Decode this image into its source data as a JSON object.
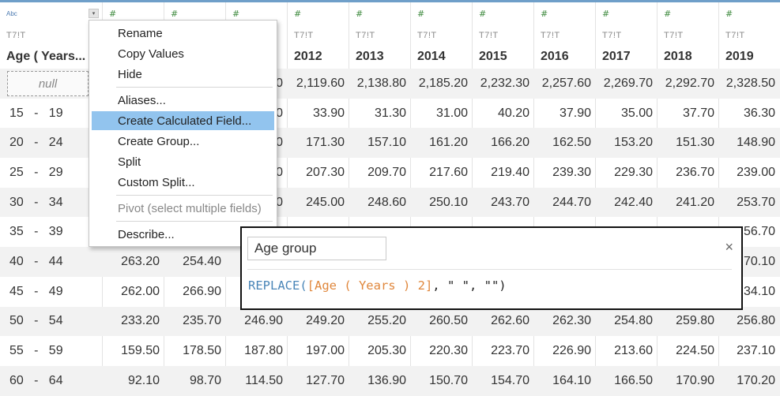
{
  "columns": [
    {
      "type_icon": "Abc",
      "format": "T7!T",
      "name": "Age ( Years..."
    },
    {
      "type_icon": "#",
      "format": "",
      "name": ""
    },
    {
      "type_icon": "#",
      "format": "",
      "name": ""
    },
    {
      "type_icon": "#",
      "format": "",
      "name": ""
    },
    {
      "type_icon": "#",
      "format": "T7!T",
      "name": "2012"
    },
    {
      "type_icon": "#",
      "format": "T7!T",
      "name": "2013"
    },
    {
      "type_icon": "#",
      "format": "T7!T",
      "name": "2014"
    },
    {
      "type_icon": "#",
      "format": "T7!T",
      "name": "2015"
    },
    {
      "type_icon": "#",
      "format": "T7!T",
      "name": "2016"
    },
    {
      "type_icon": "#",
      "format": "T7!T",
      "name": "2017"
    },
    {
      "type_icon": "#",
      "format": "T7!T",
      "name": "2018"
    },
    {
      "type_icon": "#",
      "format": "T7!T",
      "name": "2019"
    }
  ],
  "rows": [
    {
      "age": "null",
      "c1": "",
      "c2": "",
      "c3": "0",
      "v": [
        "2,119.60",
        "2,138.80",
        "2,185.20",
        "2,232.30",
        "2,257.60",
        "2,269.70",
        "2,292.70",
        "2,328.50"
      ]
    },
    {
      "age": "15   -   19",
      "c1": "",
      "c2": "",
      "c3": "0",
      "v": [
        "33.90",
        "31.30",
        "31.00",
        "40.20",
        "37.90",
        "35.00",
        "37.70",
        "36.30"
      ]
    },
    {
      "age": "20   -   24",
      "c1": "",
      "c2": "",
      "c3": "0",
      "v": [
        "171.30",
        "157.10",
        "161.20",
        "166.20",
        "162.50",
        "153.20",
        "151.30",
        "148.90"
      ]
    },
    {
      "age": "25   -   29",
      "c1": "",
      "c2": "",
      "c3": "0",
      "v": [
        "207.30",
        "209.70",
        "217.60",
        "219.40",
        "239.30",
        "229.30",
        "236.70",
        "239.00"
      ]
    },
    {
      "age": "30   -   34",
      "c1": "",
      "c2": "",
      "c3": "0",
      "v": [
        "245.00",
        "248.60",
        "250.10",
        "243.70",
        "244.70",
        "242.40",
        "241.20",
        "253.70"
      ]
    },
    {
      "age": "35   -   39",
      "c1": "",
      "c2": "",
      "c3": "",
      "v": [
        "",
        "",
        "",
        "",
        "",
        "",
        "",
        "56.70"
      ]
    },
    {
      "age": "40   -   44",
      "c1": "263.20",
      "c2": "254.40",
      "c3": "",
      "v": [
        "",
        "",
        "",
        "",
        "",
        "",
        "",
        "70.10"
      ]
    },
    {
      "age": "45   -   49",
      "c1": "262.00",
      "c2": "266.90",
      "c3": "",
      "v": [
        "",
        "",
        "",
        "",
        "",
        "",
        "",
        "34.10"
      ]
    },
    {
      "age": "50   -   54",
      "c1": "233.20",
      "c2": "235.70",
      "c3": "246.90",
      "v": [
        "249.20",
        "255.20",
        "260.50",
        "262.60",
        "262.30",
        "254.80",
        "259.80",
        "256.80"
      ]
    },
    {
      "age": "55   -   59",
      "c1": "159.50",
      "c2": "178.50",
      "c3": "187.80",
      "v": [
        "197.00",
        "205.30",
        "220.30",
        "223.70",
        "226.90",
        "213.60",
        "224.50",
        "237.10"
      ]
    },
    {
      "age": "60   -   64",
      "c1": "92.10",
      "c2": "98.70",
      "c3": "114.50",
      "v": [
        "127.70",
        "136.90",
        "150.70",
        "154.70",
        "164.10",
        "166.50",
        "170.90",
        "170.20"
      ]
    }
  ],
  "context_menu": {
    "items": [
      {
        "label": "Rename"
      },
      {
        "label": "Copy Values"
      },
      {
        "label": "Hide"
      },
      {
        "label": "Aliases..."
      },
      {
        "label": "Create Calculated Field...",
        "highlighted": true
      },
      {
        "label": "Create Group..."
      },
      {
        "label": "Split"
      },
      {
        "label": "Custom Split..."
      },
      {
        "label": "Pivot (select multiple fields)",
        "disabled": true
      },
      {
        "label": "Describe..."
      }
    ]
  },
  "calc_dialog": {
    "name": "Age group",
    "close_icon": "×",
    "formula": {
      "func": "REPLACE(",
      "field": "[Age ( Years ) 2]",
      "rest": ", \" \", \"\")"
    }
  },
  "dropdown_icon": "▾",
  "colors": {
    "accent": "#6f9fc9",
    "highlight": "#92c4ee",
    "keyword": "#4a86b8",
    "field": "#e0873c"
  }
}
